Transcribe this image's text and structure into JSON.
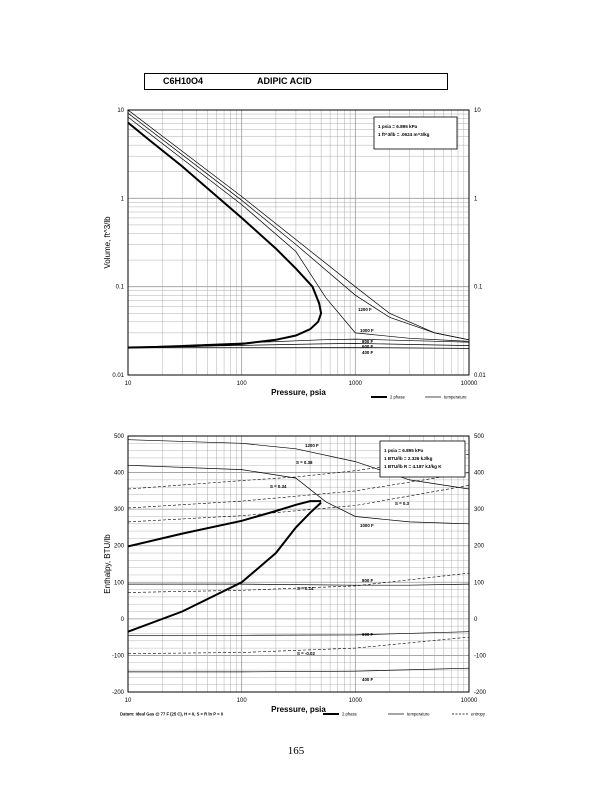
{
  "header": {
    "formula": "C6H10O4",
    "name": "ADIPIC ACID"
  },
  "page_number": "165",
  "colors": {
    "ink": "#000000",
    "grid": "#9a9a9a",
    "paper": "#ffffff"
  },
  "chart_data": [
    {
      "type": "line",
      "title": "",
      "xlabel": "Pressure,  psia",
      "ylabel": "Volume, ft^3/lb",
      "xscale": "log",
      "yscale": "log",
      "xlim": [
        10,
        10000
      ],
      "ylim": [
        0.01,
        10
      ],
      "x_ticks": [
        "10",
        "100",
        "1000",
        "10000"
      ],
      "y_ticks": [
        "0.01",
        "0.1",
        "1",
        "10"
      ],
      "grid": true,
      "conversion_note": [
        "1 psia = 6.895 kPa",
        "1 ft^3/lb = .0624 m^3/kg"
      ],
      "legend": {
        "position": "below-right",
        "entries": [
          "2 phase",
          "temperature"
        ]
      },
      "series": [
        {
          "name": "2 phase",
          "style": "thick",
          "points": [
            [
              10,
              0.0205
            ],
            [
              30,
              0.021
            ],
            [
              100,
              0.0225
            ],
            [
              200,
              0.025
            ],
            [
              300,
              0.028
            ],
            [
              400,
              0.033
            ],
            [
              470,
              0.04
            ],
            [
              500,
              0.05
            ],
            [
              480,
              0.065
            ],
            [
              420,
              0.1
            ],
            [
              300,
              0.16
            ],
            [
              200,
              0.27
            ],
            [
              100,
              0.6
            ],
            [
              50,
              1.3
            ],
            [
              30,
              2.3
            ],
            [
              15,
              4.7
            ],
            [
              10,
              7.2
            ]
          ]
        },
        {
          "name": "400 F",
          "style": "thin",
          "points": [
            [
              10,
              0.0205
            ],
            [
              100,
              0.0206
            ],
            [
              1000,
              0.0205
            ],
            [
              10000,
              0.02
            ]
          ]
        },
        {
          "name": "600 F",
          "style": "thin",
          "points": [
            [
              10,
              0.0205
            ],
            [
              500,
              0.0225
            ],
            [
              1000,
              0.0228
            ],
            [
              10000,
              0.0215
            ]
          ]
        },
        {
          "name": "800 F",
          "style": "thin",
          "points": [
            [
              10,
              0.0205
            ],
            [
              500,
              0.025
            ],
            [
              1000,
              0.0255
            ],
            [
              10000,
              0.0235
            ]
          ]
        },
        {
          "name": "1000 F",
          "style": "thin",
          "points": [
            [
              10,
              8.3
            ],
            [
              100,
              0.85
            ],
            [
              300,
              0.25
            ],
            [
              550,
              0.075
            ],
            [
              1000,
              0.03
            ],
            [
              3000,
              0.026
            ],
            [
              10000,
              0.024
            ]
          ]
        },
        {
          "name": "1200 F",
          "style": "thin",
          "points": [
            [
              10,
              9.2
            ],
            [
              100,
              0.95
            ],
            [
              300,
              0.3
            ],
            [
              1000,
              0.08
            ],
            [
              2000,
              0.045
            ],
            [
              5000,
              0.03
            ],
            [
              10000,
              0.025
            ]
          ]
        },
        {
          "name": "",
          "style": "thin",
          "points": [
            [
              10,
              10
            ],
            [
              100,
              1.05
            ],
            [
              1000,
              0.1
            ],
            [
              2000,
              0.05
            ],
            [
              5000,
              0.03
            ],
            [
              10000,
              0.025
            ]
          ]
        }
      ],
      "curve_labels": [
        "1200 F",
        "1000 F",
        "800 F",
        "600 F",
        "400 F"
      ]
    },
    {
      "type": "line",
      "title": "",
      "xlabel": "Pressure,  psia",
      "ylabel": "Enthalpy, BTU/lb",
      "xscale": "log",
      "yscale": "linear",
      "xlim": [
        10,
        10000
      ],
      "ylim": [
        -200,
        500
      ],
      "x_ticks": [
        "10",
        "100",
        "1000",
        "10000"
      ],
      "y_ticks": [
        "500",
        "400",
        "300",
        "200",
        "100",
        "0",
        "-100",
        "-200"
      ],
      "grid": true,
      "conversion_note": [
        "1 psia = 6.895 kPa",
        "1 BTU/lb = 2.326 kJ/kg",
        "1 BTU/lb R = 4.187 kJ/kg K"
      ],
      "datum_note": "Datum: Ideal Gas @ 77 F (25 C),  H = 0,  S = R ln P = 0",
      "legend": {
        "position": "below-right",
        "entries": [
          "2 phase",
          "temperature",
          "entropy"
        ]
      },
      "series": [
        {
          "name": "2 phase liquid",
          "style": "thick",
          "points": [
            [
              10,
              -35
            ],
            [
              30,
              20
            ],
            [
              100,
              100
            ],
            [
              200,
              180
            ],
            [
              300,
              250
            ],
            [
              400,
              290
            ],
            [
              500,
              318
            ]
          ]
        },
        {
          "name": "2 phase vapor",
          "style": "thick",
          "points": [
            [
              10,
              198
            ],
            [
              30,
              233
            ],
            [
              100,
              268
            ],
            [
              200,
              295
            ],
            [
              300,
              312
            ],
            [
              400,
              322
            ],
            [
              500,
              322
            ]
          ]
        },
        {
          "name": "1200 F",
          "style": "thin",
          "points": [
            [
              10,
              490
            ],
            [
              100,
              480
            ],
            [
              300,
              465
            ],
            [
              1000,
              430
            ],
            [
              3000,
              380
            ],
            [
              10000,
              355
            ]
          ]
        },
        {
          "name": "1000 F",
          "style": "thin",
          "points": [
            [
              10,
              420
            ],
            [
              100,
              408
            ],
            [
              300,
              385
            ],
            [
              550,
              320
            ],
            [
              1000,
              280
            ],
            [
              3000,
              265
            ],
            [
              10000,
              260
            ]
          ]
        },
        {
          "name": "800 F",
          "style": "thin",
          "points": [
            [
              10,
              95
            ],
            [
              100,
              95
            ],
            [
              1000,
              92
            ],
            [
              3000,
              92
            ],
            [
              10000,
              95
            ]
          ]
        },
        {
          "name": "600 F",
          "style": "thin",
          "points": [
            [
              10,
              -45
            ],
            [
              100,
              -45
            ],
            [
              1000,
              -44
            ],
            [
              10000,
              -35
            ]
          ]
        },
        {
          "name": "400 F",
          "style": "thin",
          "points": [
            [
              10,
              -145
            ],
            [
              100,
              -145
            ],
            [
              1000,
              -143
            ],
            [
              10000,
              -135
            ]
          ]
        }
      ],
      "entropy_lines": [
        {
          "label": "S = 0.38",
          "points": [
            [
              10,
              355
            ],
            [
              100,
              378
            ],
            [
              300,
              388
            ],
            [
              1000,
              405
            ],
            [
              10000,
              450
            ]
          ]
        },
        {
          "label": "S = 0.34",
          "points": [
            [
              10,
              303
            ],
            [
              100,
              322
            ],
            [
              1000,
              350
            ],
            [
              10000,
              400
            ]
          ]
        },
        {
          "label": "S = 0.3",
          "points": [
            [
              10,
              265
            ],
            [
              100,
              282
            ],
            [
              1000,
              310
            ],
            [
              10000,
              365
            ]
          ]
        },
        {
          "label": "S = 0.14",
          "points": [
            [
              10,
              72
            ],
            [
              100,
              78
            ],
            [
              1000,
              90
            ],
            [
              10000,
              125
            ]
          ]
        },
        {
          "label": "S = -0.02",
          "points": [
            [
              10,
              -95
            ],
            [
              100,
              -92
            ],
            [
              1000,
              -80
            ],
            [
              10000,
              -50
            ]
          ]
        }
      ],
      "curve_labels": [
        "1200 F",
        "1000 F",
        "800 F",
        "600 F",
        "400 F",
        "S = 0.38",
        "S = 0.34",
        "S = 0.3",
        "S = 0.14",
        "S = -0.02"
      ]
    }
  ]
}
